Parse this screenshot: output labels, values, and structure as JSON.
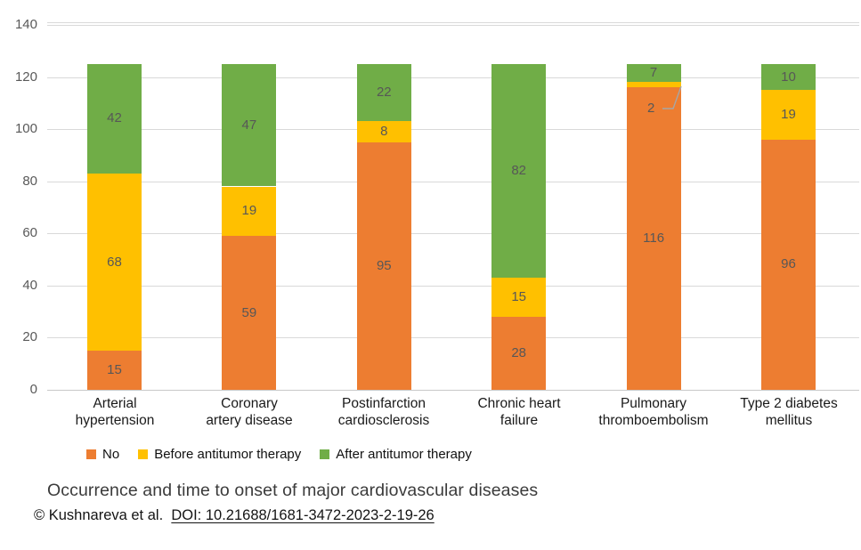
{
  "figure": {
    "caption": "Occurrence and time to onset of major cardiovascular diseases",
    "attribution_prefix": "© Kushnareva et al.",
    "doi_link": "DOI: 10.21688/1681-3472-2023-2-19-26"
  },
  "chart_data": {
    "type": "bar",
    "subtype": "stacked-vertical",
    "title": "Occurrence and time to onset of major cardiovascular diseases",
    "categories": [
      [
        "Arterial",
        "hypertension"
      ],
      [
        "Coronary",
        "artery disease"
      ],
      [
        "Postinfarction",
        "cardiosclerosis"
      ],
      [
        "Chronic heart",
        "failure"
      ],
      [
        "Pulmonary",
        "thromboembolism"
      ],
      [
        "Type 2 diabetes",
        "mellitus"
      ]
    ],
    "series": [
      {
        "name": "No",
        "color": "#ED7D31",
        "values": [
          15,
          59,
          95,
          28,
          116,
          96
        ]
      },
      {
        "name": "Before antitumor therapy",
        "color": "#FFC000",
        "values": [
          68,
          19,
          8,
          15,
          2,
          19
        ]
      },
      {
        "name": "After antitumor therapy",
        "color": "#70AD47",
        "values": [
          42,
          47,
          22,
          82,
          7,
          10
        ]
      }
    ],
    "stack_totals": [
      125,
      125,
      125,
      125,
      125,
      125
    ],
    "y_ticks": [
      0,
      20,
      40,
      60,
      80,
      100,
      120,
      140
    ],
    "ylim": [
      0,
      140
    ],
    "xlabel": "",
    "ylabel": "",
    "grid": true,
    "legend_position": "bottom",
    "annotations": [
      {
        "text": "2",
        "target": "Pulmonary thromboembolism / Before antitumor therapy"
      }
    ],
    "colors": {
      "gridline": "#d9d9d9",
      "axis_line": "#c8c8c8",
      "tick_label": "#595959",
      "value_label": "#575757",
      "leader_line": "#a6a6a6"
    }
  }
}
